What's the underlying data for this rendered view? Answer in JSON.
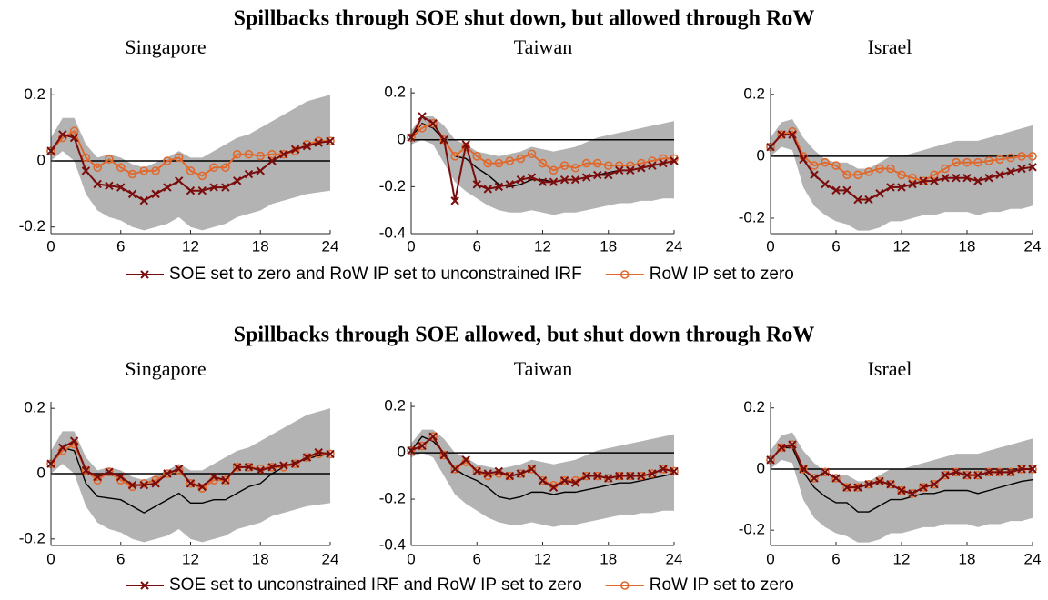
{
  "chart_data": [
    {
      "type": "line",
      "title": "Spillbacks through SOE shut down, but allowed through RoW",
      "x": [
        0,
        1,
        2,
        3,
        4,
        5,
        6,
        7,
        8,
        9,
        10,
        11,
        12,
        13,
        14,
        15,
        16,
        17,
        18,
        19,
        20,
        21,
        22,
        23,
        24
      ],
      "xlim": [
        0,
        24
      ],
      "xticks": [
        0,
        6,
        12,
        18,
        24
      ],
      "series": [
        {
          "name": "SOE set to zero and RoW IP set to unconstrained IRF",
          "color": "#7b0c0c",
          "marker": "x"
        },
        {
          "name": "RoW IP set to zero",
          "color": "#e0692e",
          "marker": "o"
        }
      ],
      "subplots": [
        {
          "subtitle": "Singapore",
          "ylim": [
            -0.22,
            0.22
          ],
          "yticks": [
            -0.2,
            0,
            0.2
          ],
          "baseline": [
            0.03,
            0.08,
            0.07,
            -0.03,
            -0.07,
            -0.075,
            -0.08,
            -0.1,
            -0.12,
            -0.1,
            -0.08,
            -0.06,
            -0.09,
            -0.09,
            -0.08,
            -0.08,
            -0.06,
            -0.04,
            -0.03,
            0,
            0.02,
            0.035,
            0.045,
            0.055,
            0.06
          ],
          "band_lower": [
            0,
            0.03,
            0,
            -0.1,
            -0.15,
            -0.17,
            -0.18,
            -0.2,
            -0.21,
            -0.2,
            -0.19,
            -0.17,
            -0.2,
            -0.21,
            -0.2,
            -0.19,
            -0.17,
            -0.16,
            -0.15,
            -0.13,
            -0.12,
            -0.11,
            -0.1,
            -0.095,
            -0.09
          ],
          "band_upper": [
            0.07,
            0.13,
            0.13,
            0.05,
            0.01,
            0.02,
            0.01,
            -0.01,
            -0.02,
            -0.005,
            0.01,
            0.03,
            0.01,
            0.01,
            0.03,
            0.05,
            0.07,
            0.08,
            0.1,
            0.12,
            0.14,
            0.16,
            0.18,
            0.19,
            0.2
          ],
          "values": [
            [
              0.03,
              0.08,
              0.07,
              -0.03,
              -0.07,
              -0.075,
              -0.08,
              -0.1,
              -0.12,
              -0.1,
              -0.08,
              -0.06,
              -0.09,
              -0.09,
              -0.08,
              -0.08,
              -0.06,
              -0.04,
              -0.03,
              0,
              0.02,
              0.035,
              0.045,
              0.055,
              0.06
            ],
            [
              0.03,
              0.07,
              0.09,
              0.01,
              -0.02,
              0.005,
              -0.02,
              -0.04,
              -0.03,
              -0.03,
              0,
              0.01,
              -0.03,
              -0.045,
              -0.02,
              -0.02,
              0.02,
              0.02,
              0.015,
              0.02,
              0.02,
              0.03,
              0.05,
              0.06,
              0.06
            ]
          ]
        },
        {
          "subtitle": "Taiwan",
          "ylim": [
            -0.4,
            0.22
          ],
          "yticks": [
            -0.4,
            -0.2,
            0,
            0.2
          ],
          "baseline": [
            0.01,
            0.07,
            0.05,
            0,
            -0.07,
            -0.08,
            -0.12,
            -0.15,
            -0.19,
            -0.2,
            -0.19,
            -0.17,
            -0.17,
            -0.18,
            -0.17,
            -0.17,
            -0.16,
            -0.15,
            -0.14,
            -0.13,
            -0.13,
            -0.12,
            -0.11,
            -0.1,
            -0.09
          ],
          "band_lower": [
            -0.02,
            0,
            -0.02,
            -0.1,
            -0.18,
            -0.22,
            -0.25,
            -0.28,
            -0.3,
            -0.31,
            -0.31,
            -0.3,
            -0.31,
            -0.32,
            -0.31,
            -0.31,
            -0.3,
            -0.29,
            -0.28,
            -0.27,
            -0.27,
            -0.26,
            -0.26,
            -0.25,
            -0.25
          ],
          "band_upper": [
            0.04,
            0.1,
            0.1,
            0.06,
            0,
            -0.02,
            -0.05,
            -0.06,
            -0.07,
            -0.06,
            -0.05,
            -0.03,
            -0.04,
            -0.05,
            -0.04,
            -0.03,
            -0.01,
            0.01,
            0.02,
            0.03,
            0.04,
            0.05,
            0.06,
            0.07,
            0.08
          ],
          "values": [
            [
              0.01,
              0.1,
              0.07,
              0,
              -0.26,
              -0.02,
              -0.19,
              -0.21,
              -0.2,
              -0.19,
              -0.17,
              -0.16,
              -0.18,
              -0.18,
              -0.17,
              -0.17,
              -0.16,
              -0.15,
              -0.15,
              -0.13,
              -0.13,
              -0.12,
              -0.11,
              -0.1,
              -0.09
            ],
            [
              0.01,
              0.05,
              0.07,
              0,
              -0.07,
              -0.03,
              -0.07,
              -0.1,
              -0.1,
              -0.09,
              -0.08,
              -0.06,
              -0.1,
              -0.13,
              -0.11,
              -0.12,
              -0.1,
              -0.1,
              -0.11,
              -0.11,
              -0.11,
              -0.1,
              -0.09,
              -0.08,
              -0.08
            ]
          ]
        },
        {
          "subtitle": "Israel",
          "ylim": [
            -0.25,
            0.22
          ],
          "yticks": [
            -0.2,
            0,
            0.2
          ],
          "baseline": [
            0.03,
            0.07,
            0.07,
            -0.01,
            -0.06,
            -0.09,
            -0.11,
            -0.11,
            -0.14,
            -0.14,
            -0.12,
            -0.1,
            -0.1,
            -0.09,
            -0.08,
            -0.08,
            -0.07,
            -0.07,
            -0.07,
            -0.08,
            -0.07,
            -0.06,
            -0.05,
            -0.04,
            -0.035
          ],
          "band_lower": [
            0,
            0.03,
            0.02,
            -0.1,
            -0.16,
            -0.19,
            -0.21,
            -0.22,
            -0.24,
            -0.24,
            -0.23,
            -0.21,
            -0.21,
            -0.2,
            -0.19,
            -0.19,
            -0.18,
            -0.18,
            -0.18,
            -0.19,
            -0.18,
            -0.18,
            -0.17,
            -0.17,
            -0.16
          ],
          "band_upper": [
            0.06,
            0.11,
            0.12,
            0.06,
            0.02,
            -0.01,
            -0.02,
            -0.02,
            -0.04,
            -0.04,
            -0.02,
            0,
            0,
            0.01,
            0.02,
            0.03,
            0.04,
            0.05,
            0.05,
            0.05,
            0.06,
            0.07,
            0.08,
            0.09,
            0.1
          ],
          "values": [
            [
              0.03,
              0.07,
              0.07,
              -0.01,
              -0.06,
              -0.09,
              -0.11,
              -0.11,
              -0.14,
              -0.14,
              -0.12,
              -0.1,
              -0.1,
              -0.09,
              -0.08,
              -0.08,
              -0.07,
              -0.07,
              -0.07,
              -0.08,
              -0.07,
              -0.06,
              -0.05,
              -0.04,
              -0.035
            ],
            [
              0.03,
              0.07,
              0.08,
              0,
              -0.03,
              -0.02,
              -0.03,
              -0.06,
              -0.06,
              -0.05,
              -0.04,
              -0.04,
              -0.06,
              -0.07,
              -0.08,
              -0.06,
              -0.04,
              -0.02,
              -0.02,
              -0.02,
              -0.015,
              -0.01,
              -0.005,
              0,
              0
            ]
          ]
        }
      ]
    },
    {
      "type": "line",
      "title": "Spillbacks through SOE allowed, but shut down through RoW",
      "x": [
        0,
        1,
        2,
        3,
        4,
        5,
        6,
        7,
        8,
        9,
        10,
        11,
        12,
        13,
        14,
        15,
        16,
        17,
        18,
        19,
        20,
        21,
        22,
        23,
        24
      ],
      "xlim": [
        0,
        24
      ],
      "xticks": [
        0,
        6,
        12,
        18,
        24
      ],
      "series": [
        {
          "name": "SOE set to unconstrained IRF and RoW IP set to zero",
          "color": "#7b0c0c",
          "marker": "x"
        },
        {
          "name": "RoW IP set to zero",
          "color": "#e0692e",
          "marker": "o"
        }
      ],
      "subplots": [
        {
          "subtitle": "Singapore",
          "ylim": [
            -0.22,
            0.22
          ],
          "yticks": [
            -0.2,
            0,
            0.2
          ],
          "baseline": [
            0.03,
            0.08,
            0.07,
            -0.03,
            -0.07,
            -0.075,
            -0.08,
            -0.1,
            -0.12,
            -0.1,
            -0.08,
            -0.06,
            -0.09,
            -0.09,
            -0.08,
            -0.08,
            -0.06,
            -0.04,
            -0.03,
            0,
            0.02,
            0.035,
            0.045,
            0.055,
            0.06
          ],
          "band_lower": [
            0,
            0.03,
            0,
            -0.1,
            -0.15,
            -0.17,
            -0.18,
            -0.2,
            -0.21,
            -0.2,
            -0.19,
            -0.17,
            -0.2,
            -0.21,
            -0.2,
            -0.19,
            -0.17,
            -0.16,
            -0.15,
            -0.13,
            -0.12,
            -0.11,
            -0.1,
            -0.095,
            -0.09
          ],
          "band_upper": [
            0.07,
            0.13,
            0.13,
            0.05,
            0.01,
            0.02,
            0.01,
            -0.01,
            -0.02,
            -0.005,
            0.01,
            0.03,
            0.01,
            0.01,
            0.03,
            0.05,
            0.07,
            0.08,
            0.1,
            0.12,
            0.14,
            0.16,
            0.18,
            0.19,
            0.2
          ],
          "values": [
            [
              0.03,
              0.08,
              0.1,
              0.01,
              -0.01,
              0.005,
              -0.01,
              -0.035,
              -0.035,
              -0.03,
              0,
              0.015,
              -0.03,
              -0.04,
              -0.01,
              -0.02,
              0.02,
              0.02,
              0.01,
              0.02,
              0.025,
              0.03,
              0.05,
              0.065,
              0.06
            ],
            [
              0.03,
              0.07,
              0.09,
              0.01,
              -0.02,
              0.005,
              -0.02,
              -0.04,
              -0.03,
              -0.02,
              0,
              0.01,
              -0.03,
              -0.045,
              -0.02,
              -0.02,
              0.02,
              0.02,
              0.015,
              0.02,
              0.02,
              0.03,
              0.05,
              0.06,
              0.06
            ]
          ]
        },
        {
          "subtitle": "Taiwan",
          "ylim": [
            -0.4,
            0.22
          ],
          "yticks": [
            -0.4,
            -0.2,
            0,
            0.2
          ],
          "baseline": [
            0.01,
            0.07,
            0.05,
            0,
            -0.07,
            -0.1,
            -0.12,
            -0.15,
            -0.19,
            -0.2,
            -0.19,
            -0.17,
            -0.17,
            -0.18,
            -0.17,
            -0.17,
            -0.16,
            -0.15,
            -0.14,
            -0.13,
            -0.13,
            -0.12,
            -0.11,
            -0.1,
            -0.09
          ],
          "band_lower": [
            -0.02,
            0,
            -0.02,
            -0.1,
            -0.18,
            -0.22,
            -0.25,
            -0.28,
            -0.3,
            -0.31,
            -0.31,
            -0.3,
            -0.31,
            -0.32,
            -0.31,
            -0.31,
            -0.3,
            -0.29,
            -0.28,
            -0.27,
            -0.27,
            -0.26,
            -0.26,
            -0.25,
            -0.25
          ],
          "band_upper": [
            0.04,
            0.1,
            0.1,
            0.06,
            0,
            -0.02,
            -0.05,
            -0.06,
            -0.07,
            -0.06,
            -0.05,
            -0.03,
            -0.04,
            -0.05,
            -0.04,
            -0.03,
            -0.01,
            0.01,
            0.02,
            0.03,
            0.04,
            0.05,
            0.06,
            0.07,
            0.08
          ],
          "values": [
            [
              0.01,
              0.03,
              0.07,
              -0.01,
              -0.07,
              -0.03,
              -0.08,
              -0.09,
              -0.08,
              -0.1,
              -0.09,
              -0.07,
              -0.12,
              -0.15,
              -0.12,
              -0.13,
              -0.1,
              -0.1,
              -0.11,
              -0.1,
              -0.1,
              -0.1,
              -0.09,
              -0.07,
              -0.08
            ],
            [
              0.01,
              0.03,
              0.07,
              -0.01,
              -0.07,
              -0.04,
              -0.08,
              -0.1,
              -0.09,
              -0.1,
              -0.09,
              -0.07,
              -0.12,
              -0.14,
              -0.12,
              -0.12,
              -0.1,
              -0.1,
              -0.11,
              -0.1,
              -0.1,
              -0.1,
              -0.09,
              -0.07,
              -0.08
            ]
          ]
        },
        {
          "subtitle": "Israel",
          "ylim": [
            -0.25,
            0.22
          ],
          "yticks": [
            -0.2,
            0,
            0.2
          ],
          "baseline": [
            0.03,
            0.07,
            0.07,
            -0.01,
            -0.06,
            -0.09,
            -0.11,
            -0.11,
            -0.14,
            -0.14,
            -0.12,
            -0.1,
            -0.1,
            -0.09,
            -0.08,
            -0.08,
            -0.07,
            -0.07,
            -0.07,
            -0.08,
            -0.07,
            -0.06,
            -0.05,
            -0.04,
            -0.035
          ],
          "band_lower": [
            0,
            0.03,
            0.02,
            -0.1,
            -0.16,
            -0.19,
            -0.21,
            -0.22,
            -0.24,
            -0.24,
            -0.23,
            -0.21,
            -0.21,
            -0.2,
            -0.19,
            -0.19,
            -0.18,
            -0.18,
            -0.18,
            -0.19,
            -0.18,
            -0.18,
            -0.17,
            -0.17,
            -0.16
          ],
          "band_upper": [
            0.06,
            0.11,
            0.12,
            0.06,
            0.02,
            -0.01,
            -0.02,
            -0.02,
            -0.04,
            -0.04,
            -0.02,
            0,
            0,
            0.01,
            0.02,
            0.03,
            0.04,
            0.05,
            0.05,
            0.05,
            0.06,
            0.07,
            0.08,
            0.09,
            0.1
          ],
          "values": [
            [
              0.03,
              0.07,
              0.08,
              0,
              -0.03,
              -0.01,
              -0.03,
              -0.06,
              -0.06,
              -0.05,
              -0.04,
              -0.05,
              -0.07,
              -0.08,
              -0.06,
              -0.05,
              -0.02,
              -0.01,
              -0.02,
              -0.02,
              -0.01,
              -0.01,
              -0.01,
              0,
              0
            ],
            [
              0.03,
              0.07,
              0.08,
              0,
              -0.03,
              -0.01,
              -0.03,
              -0.06,
              -0.06,
              -0.05,
              -0.04,
              -0.05,
              -0.07,
              -0.08,
              -0.06,
              -0.05,
              -0.02,
              -0.01,
              -0.02,
              -0.02,
              -0.01,
              -0.01,
              -0.01,
              0,
              0
            ]
          ]
        }
      ]
    }
  ]
}
